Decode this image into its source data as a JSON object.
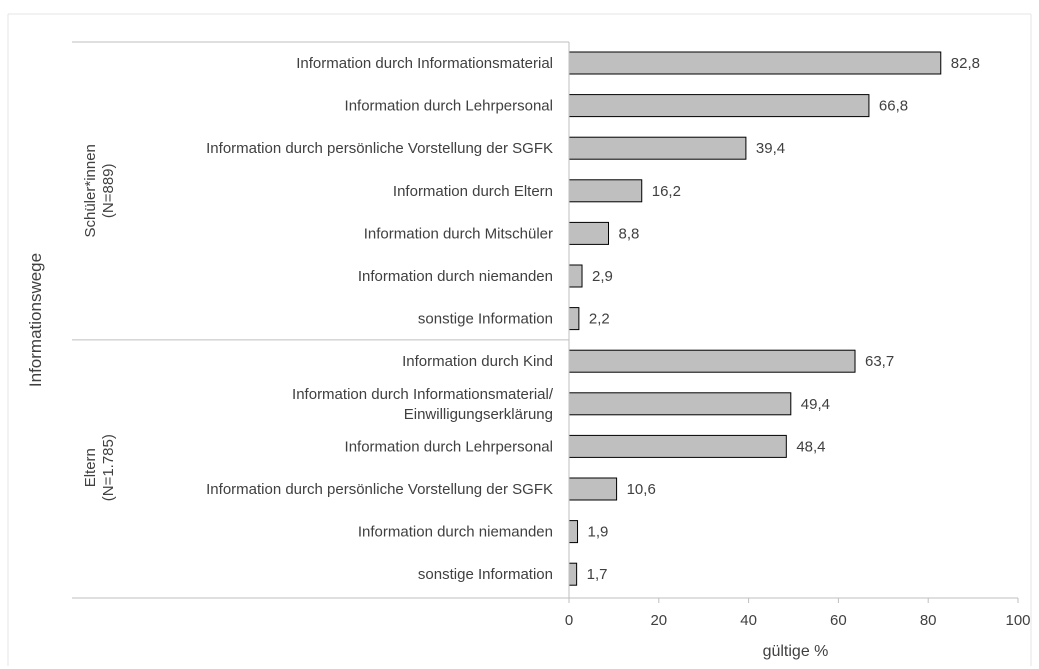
{
  "chart_data": {
    "type": "bar",
    "orientation": "horizontal",
    "y_axis_title": "Informationswege",
    "xlabel": "gültige %",
    "xlim": [
      0,
      100
    ],
    "x_ticks": [
      "0",
      "20",
      "40",
      "60",
      "80",
      "100"
    ],
    "groups": [
      {
        "label_line1": "Schüler*innen",
        "label_line2": "(N=889)",
        "categories": [
          {
            "lines": [
              "Information durch Informationsmaterial"
            ],
            "value": 82.8,
            "value_label": "82,8"
          },
          {
            "lines": [
              "Information durch Lehrpersonal"
            ],
            "value": 66.8,
            "value_label": "66,8"
          },
          {
            "lines": [
              "Information durch persönliche Vorstellung der SGFK"
            ],
            "value": 39.4,
            "value_label": "39,4"
          },
          {
            "lines": [
              "Information durch Eltern"
            ],
            "value": 16.2,
            "value_label": "16,2"
          },
          {
            "lines": [
              "Information durch Mitschüler"
            ],
            "value": 8.8,
            "value_label": "8,8"
          },
          {
            "lines": [
              "Information durch niemanden"
            ],
            "value": 2.9,
            "value_label": "2,9"
          },
          {
            "lines": [
              "sonstige Information"
            ],
            "value": 2.2,
            "value_label": "2,2"
          }
        ]
      },
      {
        "label_line1": "Eltern",
        "label_line2": "(N=1.785)",
        "categories": [
          {
            "lines": [
              "Information durch Kind"
            ],
            "value": 63.7,
            "value_label": "63,7"
          },
          {
            "lines": [
              "Information durch Informationsmaterial/",
              "Einwilligungserklärung"
            ],
            "value": 49.4,
            "value_label": "49,4"
          },
          {
            "lines": [
              "Information durch Lehrpersonal"
            ],
            "value": 48.4,
            "value_label": "48,4"
          },
          {
            "lines": [
              "Information durch persönliche Vorstellung der SGFK"
            ],
            "value": 10.6,
            "value_label": "10,6"
          },
          {
            "lines": [
              "Information durch niemanden"
            ],
            "value": 1.9,
            "value_label": "1,9"
          },
          {
            "lines": [
              "sonstige Information"
            ],
            "value": 1.7,
            "value_label": "1,7"
          }
        ]
      }
    ],
    "colors": {
      "bar_fill": "#bfbfbf",
      "bar_stroke": "#000000",
      "axis_line": "#bfbfbf",
      "text": "#404040"
    }
  }
}
